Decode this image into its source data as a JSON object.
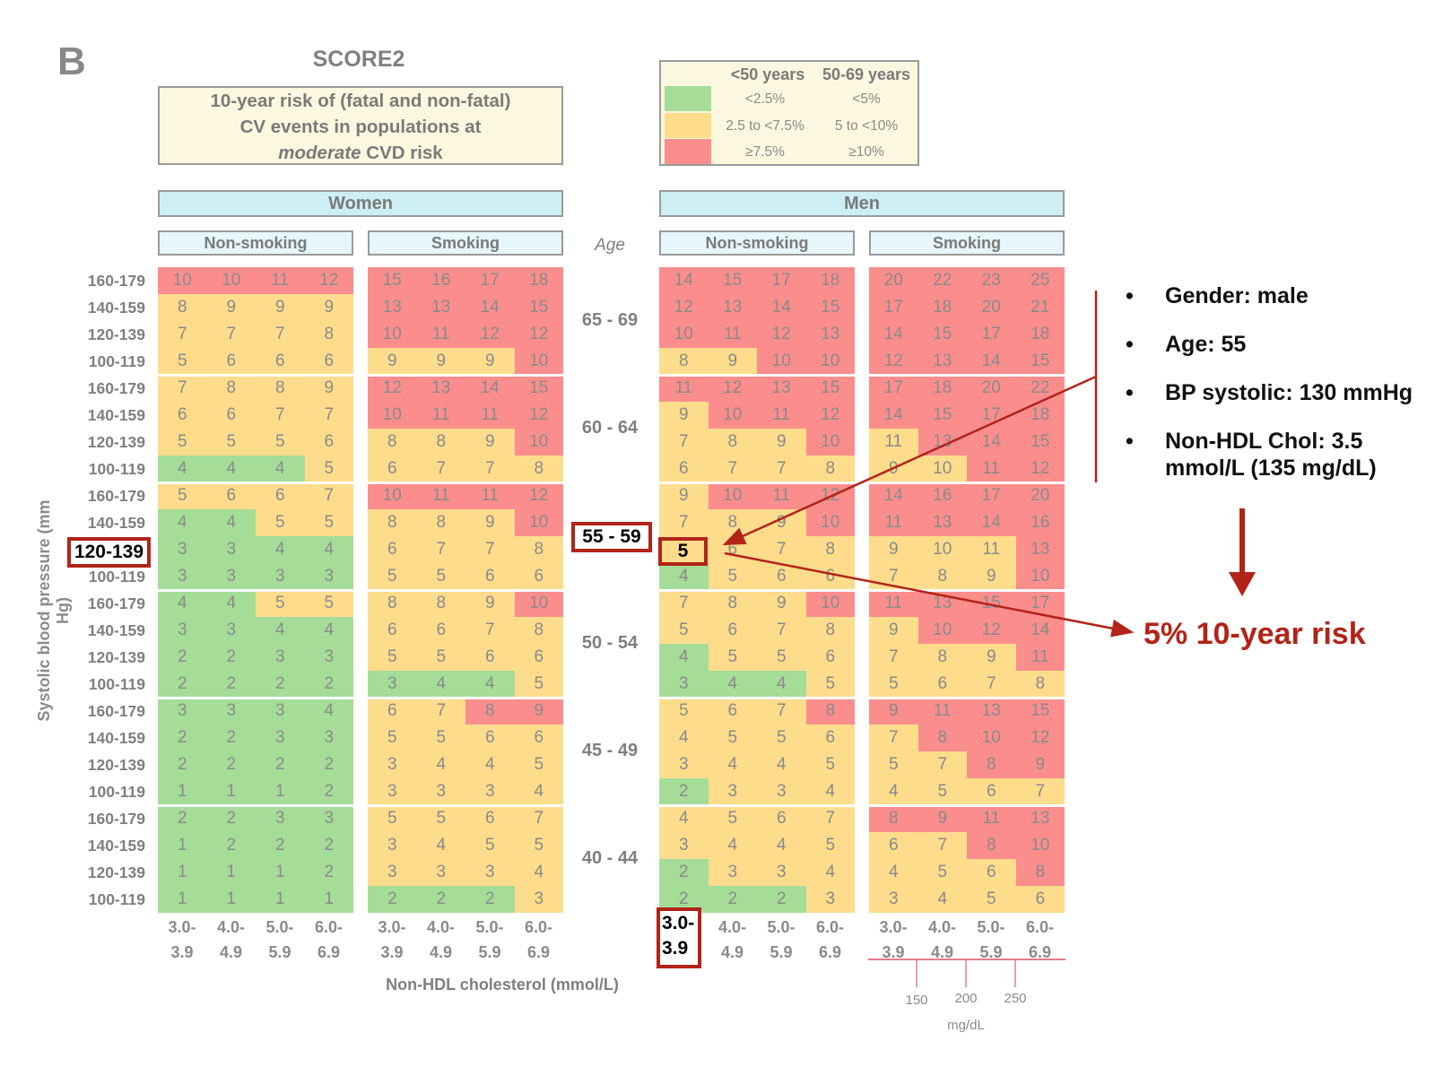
{
  "panel_letter": "B",
  "title": "SCORE2",
  "description": {
    "line1": "10-year risk of (fatal and non-fatal)",
    "line2": "CV events in populations at",
    "line3_italic": "moderate",
    "line3_rest": " CVD risk"
  },
  "legend": {
    "col_headers": [
      "<50 years",
      "50-69 years"
    ],
    "rows": [
      {
        "color": "#a5dd98",
        "lt50": "<2.5%",
        "age50_69": "<5%"
      },
      {
        "color": "#fddc8c",
        "lt50": "2.5 to <7.5%",
        "age50_69": "5 to <10%"
      },
      {
        "color": "#fb8d8d",
        "lt50": "≥7.5%",
        "age50_69": "≥10%"
      }
    ]
  },
  "groups": {
    "women": "Women",
    "men": "Men"
  },
  "subgroups": [
    "Non-smoking",
    "Smoking",
    "Non-smoking",
    "Smoking"
  ],
  "age_header": "Age",
  "age_labels": [
    "65 - 69",
    "60 - 64",
    "55 - 59",
    "50 - 54",
    "45 - 49",
    "40 - 44"
  ],
  "bp_labels": [
    "160-179",
    "140-159",
    "120-139",
    "100-119"
  ],
  "y_axis_title": "Systolic blood pressure (mm Hg)",
  "x_axis_title": "Non-HDL cholesterol (mmol/L)",
  "x_ticks_top": [
    "3.0-",
    "4.0-",
    "5.0-",
    "6.0-"
  ],
  "x_ticks_bottom": [
    "3.9",
    "4.9",
    "5.9",
    "6.9"
  ],
  "mg_labels": [
    "150",
    "200",
    "250"
  ],
  "mg_unit": "mg/dL",
  "highlights": {
    "bp": "120-139",
    "age": "55 - 59",
    "cell": "5",
    "chol_top": "3.0-",
    "chol_bottom": "3.9"
  },
  "bullets": [
    "Gender: male",
    "Age: 55",
    "BP systolic: 130 mmHg",
    "Non-HDL Chol: 3.5",
    "mmol/L (135 mg/dL)"
  ],
  "bullet_symbol": "•",
  "result": "5% 10-year risk",
  "colors": {
    "green": "#a5dd98",
    "yellow": "#fddc8c",
    "red": "#fb8d8d",
    "accent": "#b22418"
  },
  "chart_data": {
    "type": "heatmap",
    "title": "SCORE2",
    "ylabel": "Systolic blood pressure (mm Hg)",
    "xlabel": "Non-HDL cholesterol (mmol/L)",
    "panels": [
      "Women Non-smoking",
      "Women Smoking",
      "Men Non-smoking",
      "Men Smoking"
    ],
    "ages": [
      "65 - 69",
      "60 - 64",
      "55 - 59",
      "50 - 54",
      "45 - 49",
      "40 - 44"
    ],
    "values": [
      [
        [
          [
            10,
            10,
            11,
            12
          ],
          [
            8,
            9,
            9,
            9
          ],
          [
            7,
            7,
            7,
            8
          ],
          [
            5,
            6,
            6,
            6
          ]
        ],
        [
          [
            7,
            8,
            8,
            9
          ],
          [
            6,
            6,
            7,
            7
          ],
          [
            5,
            5,
            5,
            6
          ],
          [
            4,
            4,
            4,
            5
          ]
        ],
        [
          [
            5,
            6,
            6,
            7
          ],
          [
            4,
            4,
            5,
            5
          ],
          [
            3,
            3,
            4,
            4
          ],
          [
            3,
            3,
            3,
            3
          ]
        ],
        [
          [
            4,
            4,
            5,
            5
          ],
          [
            3,
            3,
            4,
            4
          ],
          [
            2,
            2,
            3,
            3
          ],
          [
            2,
            2,
            2,
            2
          ]
        ],
        [
          [
            3,
            3,
            3,
            4
          ],
          [
            2,
            2,
            3,
            3
          ],
          [
            2,
            2,
            2,
            2
          ],
          [
            1,
            1,
            1,
            2
          ]
        ],
        [
          [
            2,
            2,
            3,
            3
          ],
          [
            1,
            2,
            2,
            2
          ],
          [
            1,
            1,
            1,
            2
          ],
          [
            1,
            1,
            1,
            1
          ]
        ]
      ],
      [
        [
          [
            15,
            16,
            17,
            18
          ],
          [
            13,
            13,
            14,
            15
          ],
          [
            10,
            11,
            12,
            12
          ],
          [
            9,
            9,
            9,
            10
          ]
        ],
        [
          [
            12,
            13,
            14,
            15
          ],
          [
            10,
            11,
            11,
            12
          ],
          [
            8,
            8,
            9,
            10
          ],
          [
            6,
            7,
            7,
            8
          ]
        ],
        [
          [
            10,
            11,
            11,
            12
          ],
          [
            8,
            8,
            9,
            10
          ],
          [
            6,
            7,
            7,
            8
          ],
          [
            5,
            5,
            6,
            6
          ]
        ],
        [
          [
            8,
            8,
            9,
            10
          ],
          [
            6,
            6,
            7,
            8
          ],
          [
            5,
            5,
            6,
            6
          ],
          [
            3,
            4,
            4,
            5
          ]
        ],
        [
          [
            6,
            7,
            8,
            9
          ],
          [
            5,
            5,
            6,
            6
          ],
          [
            3,
            4,
            4,
            5
          ],
          [
            3,
            3,
            3,
            4
          ]
        ],
        [
          [
            5,
            5,
            6,
            7
          ],
          [
            3,
            4,
            5,
            5
          ],
          [
            3,
            3,
            3,
            4
          ],
          [
            2,
            2,
            2,
            3
          ]
        ]
      ],
      [
        [
          [
            14,
            15,
            17,
            18
          ],
          [
            12,
            13,
            14,
            15
          ],
          [
            10,
            11,
            12,
            13
          ],
          [
            8,
            9,
            10,
            10
          ]
        ],
        [
          [
            11,
            12,
            13,
            15
          ],
          [
            9,
            10,
            11,
            12
          ],
          [
            7,
            8,
            9,
            10
          ],
          [
            6,
            7,
            7,
            8
          ]
        ],
        [
          [
            9,
            10,
            11,
            12
          ],
          [
            7,
            8,
            9,
            10
          ],
          [
            5,
            6,
            7,
            8
          ],
          [
            4,
            5,
            6,
            6
          ]
        ],
        [
          [
            7,
            8,
            9,
            10
          ],
          [
            5,
            6,
            7,
            8
          ],
          [
            4,
            5,
            5,
            6
          ],
          [
            3,
            4,
            4,
            5
          ]
        ],
        [
          [
            5,
            6,
            7,
            8
          ],
          [
            4,
            5,
            5,
            6
          ],
          [
            3,
            4,
            4,
            5
          ],
          [
            2,
            3,
            3,
            4
          ]
        ],
        [
          [
            4,
            5,
            6,
            7
          ],
          [
            3,
            4,
            4,
            5
          ],
          [
            2,
            3,
            3,
            4
          ],
          [
            2,
            2,
            2,
            3
          ]
        ]
      ],
      [
        [
          [
            20,
            22,
            23,
            25
          ],
          [
            17,
            18,
            20,
            21
          ],
          [
            14,
            15,
            17,
            18
          ],
          [
            12,
            13,
            14,
            15
          ]
        ],
        [
          [
            17,
            18,
            20,
            22
          ],
          [
            14,
            15,
            17,
            18
          ],
          [
            11,
            13,
            14,
            15
          ],
          [
            9,
            10,
            11,
            12
          ]
        ],
        [
          [
            14,
            16,
            17,
            20
          ],
          [
            11,
            13,
            14,
            16
          ],
          [
            9,
            10,
            11,
            13
          ],
          [
            7,
            8,
            9,
            10
          ]
        ],
        [
          [
            11,
            13,
            15,
            17
          ],
          [
            9,
            10,
            12,
            14
          ],
          [
            7,
            8,
            9,
            11
          ],
          [
            5,
            6,
            7,
            8
          ]
        ],
        [
          [
            9,
            11,
            13,
            15
          ],
          [
            7,
            8,
            10,
            12
          ],
          [
            5,
            7,
            8,
            9
          ],
          [
            4,
            5,
            6,
            7
          ]
        ],
        [
          [
            8,
            9,
            11,
            13
          ],
          [
            6,
            7,
            8,
            10
          ],
          [
            4,
            5,
            6,
            8
          ],
          [
            3,
            4,
            5,
            6
          ]
        ]
      ]
    ],
    "colors": [
      [
        [
          "rrrr",
          "yyyy",
          "yyyy",
          "yyyy"
        ],
        [
          "yyyy",
          "yyyy",
          "yyyy",
          "gggy"
        ],
        [
          "yyyy",
          "ggyy",
          "gggg",
          "gggg"
        ],
        [
          "ggyy",
          "gggg",
          "gggg",
          "gggg"
        ],
        [
          "gggg",
          "gggg",
          "gggg",
          "gggg"
        ],
        [
          "gggg",
          "gggg",
          "gggg",
          "gggg"
        ]
      ],
      [
        [
          "rrrr",
          "rrrr",
          "rrrr",
          "yyyr"
        ],
        [
          "rrrr",
          "rrrr",
          "yyyr",
          "yyyy"
        ],
        [
          "rrrr",
          "yyyr",
          "yyyy",
          "yyyy"
        ],
        [
          "yyyr",
          "yyyy",
          "yyyy",
          "gggy"
        ],
        [
          "yyrr",
          "yyyy",
          "yyyy",
          "yyyy"
        ],
        [
          "yyyy",
          "yyyy",
          "yyyy",
          "gggy"
        ]
      ],
      [
        [
          "rrrr",
          "rrrr",
          "rrrr",
          "yyrr"
        ],
        [
          "rrrr",
          "yrrr",
          "yyyr",
          "yyyy"
        ],
        [
          "yrrr",
          "yyyr",
          "yyyy",
          "gyyy"
        ],
        [
          "yyyr",
          "yyyy",
          "gyyy",
          "gggy"
        ],
        [
          "yyyr",
          "yyyy",
          "yyyy",
          "gyyy"
        ],
        [
          "yyyy",
          "yyyy",
          "gyyy",
          "gggy"
        ]
      ],
      [
        [
          "rrrr",
          "rrrr",
          "rrrr",
          "rrrr"
        ],
        [
          "rrrr",
          "rrrr",
          "yrrr",
          "yyrr"
        ],
        [
          "rrrr",
          "rrrr",
          "yyyr",
          "yyyr"
        ],
        [
          "rrrr",
          "yrrr",
          "yyyr",
          "yyyy"
        ],
        [
          "rrrr",
          "yrrr",
          "yyrr",
          "yyyy"
        ],
        [
          "rrrr",
          "yyrr",
          "yyyr",
          "yyyy"
        ]
      ]
    ]
  }
}
